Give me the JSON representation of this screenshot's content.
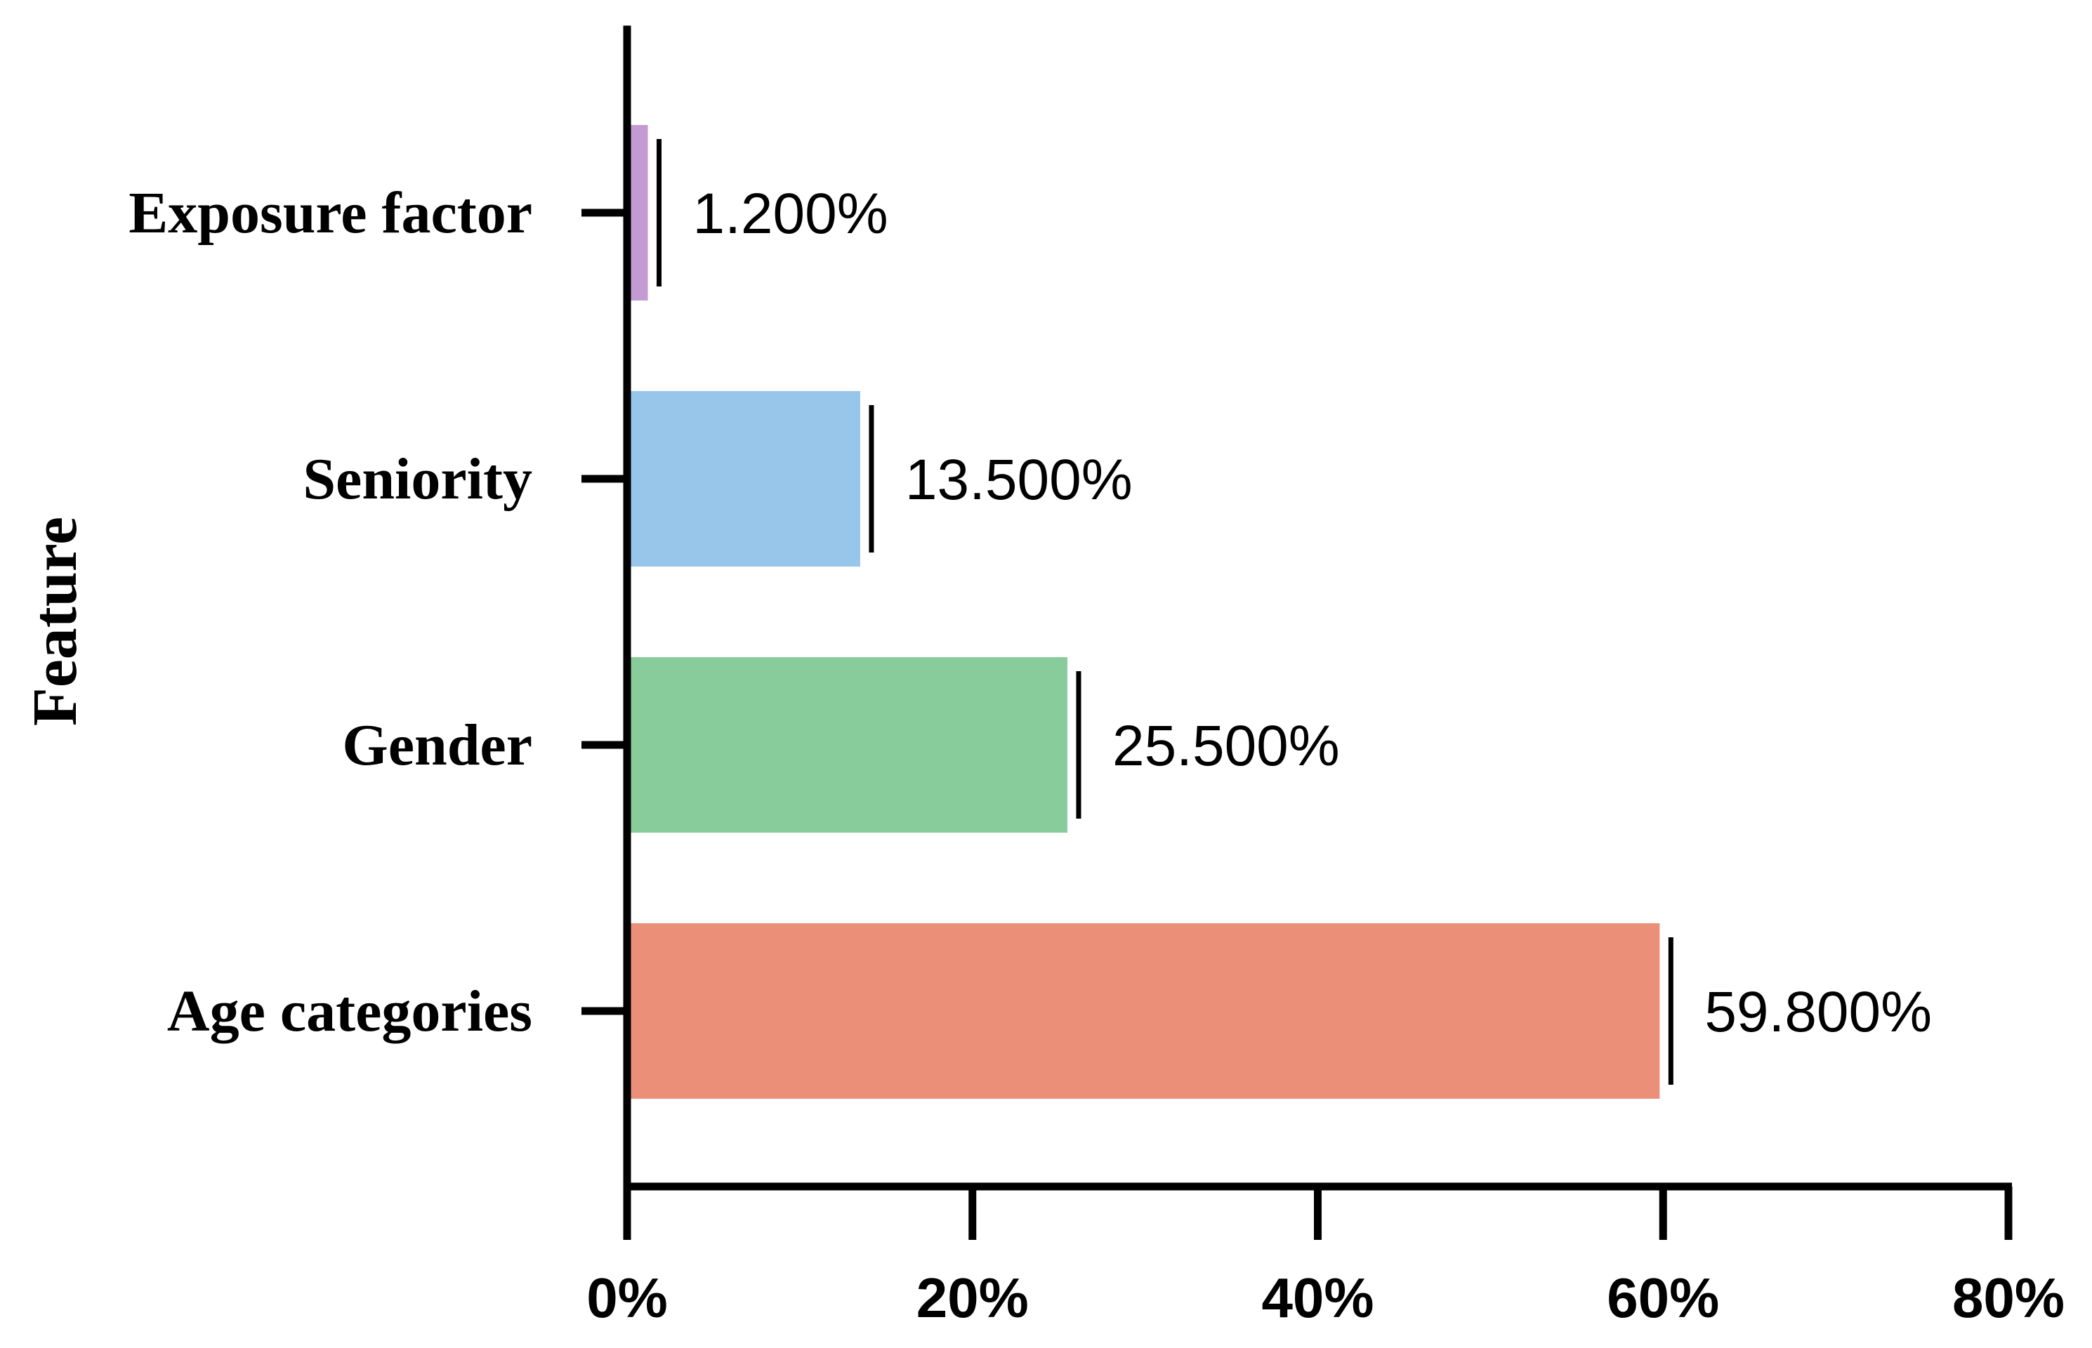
{
  "chart_data": {
    "type": "bar",
    "orientation": "horizontal",
    "title": "",
    "xlabel": "",
    "ylabel": "Feature",
    "xlim": [
      0,
      80
    ],
    "x_ticks": [
      0,
      20,
      40,
      60,
      80
    ],
    "x_tick_labels": [
      "0%",
      "20%",
      "40%",
      "60%",
      "80%"
    ],
    "categories": [
      "Exposure factor",
      "Seniority",
      "Gender",
      "Age categories"
    ],
    "values": [
      1.2,
      13.5,
      25.5,
      59.8
    ],
    "value_labels": [
      "1.200%",
      "13.500%",
      "25.500%",
      "59.800%"
    ],
    "colors": [
      "#c39bd3",
      "#98c5ea",
      "#88cc9c",
      "#eb8f78"
    ],
    "grid": false,
    "legend": "none",
    "error_markers": true
  }
}
